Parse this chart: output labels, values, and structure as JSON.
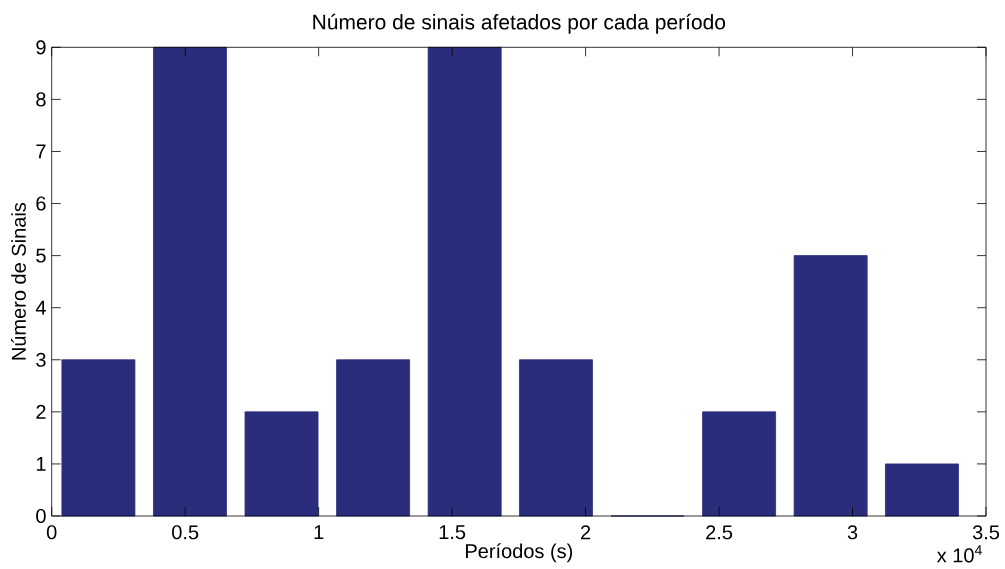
{
  "chart_data": {
    "type": "bar",
    "title": "Número de sinais afetados por cada período",
    "xlabel": "Períodos (s)",
    "ylabel": "Número de Sinais",
    "annotations": [
      "x 10$^{4}$"
    ],
    "x": [
      0.175,
      0.518,
      0.861,
      1.204,
      1.547,
      1.889,
      2.232,
      2.575,
      2.918,
      3.26
    ],
    "values": [
      3,
      9,
      2,
      3,
      9,
      3,
      0,
      2,
      5,
      1
    ],
    "color": "#2a2d7c",
    "xlim": [
      0,
      3.5
    ],
    "ylim": [
      0,
      9
    ],
    "xticks": [
      0,
      0.5,
      1,
      1.5,
      2,
      2.5,
      3,
      3.5
    ],
    "yticks": [
      0,
      1,
      2,
      3,
      4,
      5,
      6,
      7,
      8,
      9
    ]
  }
}
